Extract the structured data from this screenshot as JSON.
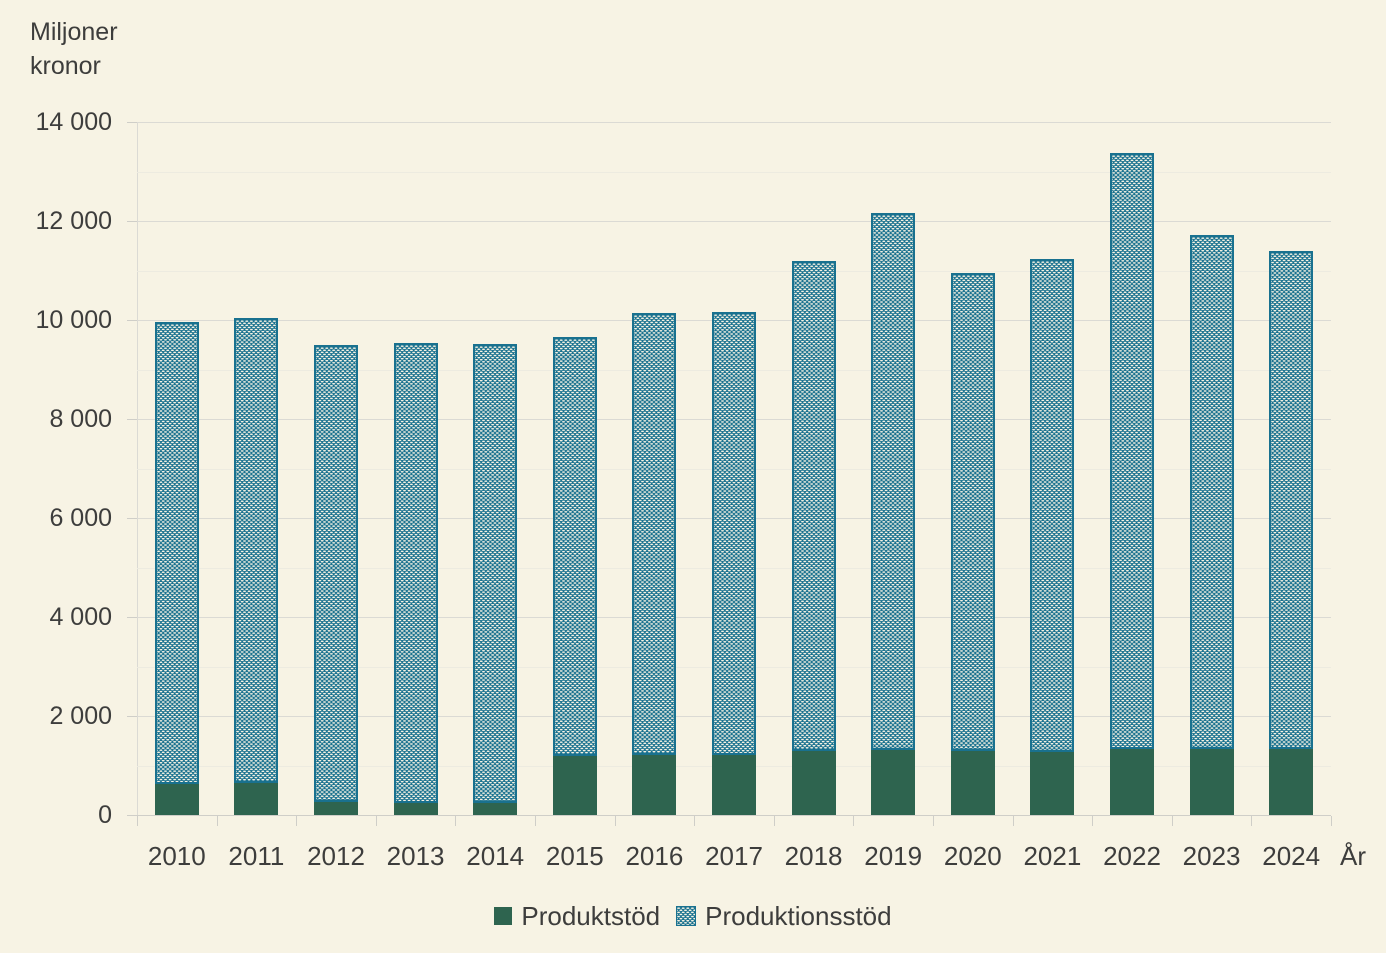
{
  "title": "Miljoner kronor",
  "x_axis_label": "År",
  "colors": {
    "background": "#f7f3e4",
    "produktstod_green": "#2e644f",
    "produktionsstod_teal": "#19718f",
    "pattern_dash": "#f7f3e4",
    "grid_major": "#dbdad4",
    "grid_minor": "#edebe0",
    "axis": "#cfcec8",
    "text": "#3d3d3c"
  },
  "y_axis": {
    "ticks": [
      {
        "value": 0,
        "label": "0"
      },
      {
        "value": 2000,
        "label": "2 000"
      },
      {
        "value": 4000,
        "label": "4 000"
      },
      {
        "value": 6000,
        "label": "6 000"
      },
      {
        "value": 8000,
        "label": "8 000"
      },
      {
        "value": 10000,
        "label": "10 000"
      },
      {
        "value": 12000,
        "label": "12 000"
      },
      {
        "value": 14000,
        "label": "14 000"
      }
    ],
    "minor_ticks": [
      1000,
      3000,
      5000,
      7000,
      9000,
      11000,
      13000
    ]
  },
  "legend": [
    {
      "label": "Produktstöd",
      "swatch": "solid-dark-green"
    },
    {
      "label": "Produktionsstöd",
      "swatch": "teal-white-dash-pattern"
    }
  ],
  "chart_data": {
    "type": "bar",
    "stacked": true,
    "title": "Miljoner kronor",
    "xlabel": "År",
    "ylabel": "Miljoner kronor",
    "ylim": [
      0,
      14000
    ],
    "grid": "on",
    "legend_position": "bottom-center",
    "categories": [
      "2010",
      "2011",
      "2012",
      "2013",
      "2014",
      "2015",
      "2016",
      "2017",
      "2018",
      "2019",
      "2020",
      "2021",
      "2022",
      "2023",
      "2024"
    ],
    "series": [
      {
        "name": "Produktstöd",
        "color": "#2e644f",
        "pattern": "solid",
        "values": [
          630,
          650,
          270,
          250,
          250,
          1200,
          1210,
          1220,
          1290,
          1310,
          1300,
          1280,
          1330,
          1330,
          1330
        ]
      },
      {
        "name": "Produktionsstöd",
        "color": "#19718f",
        "pattern": "white-dash-brick",
        "values": [
          9340,
          9390,
          9220,
          9290,
          9270,
          8460,
          8930,
          8950,
          9900,
          10860,
          9650,
          9960,
          12040,
          10390,
          10070
        ]
      }
    ],
    "totals": [
      9970,
      10040,
      9490,
      9540,
      9520,
      9660,
      10140,
      10170,
      11190,
      12170,
      10950,
      11240,
      13370,
      11720,
      11400
    ]
  }
}
